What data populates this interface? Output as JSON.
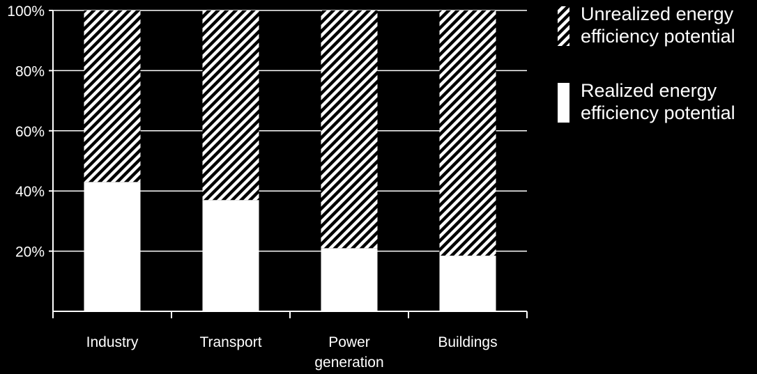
{
  "colors": {
    "background": "#000000",
    "foreground": "#ffffff"
  },
  "chart_data": {
    "type": "bar",
    "stacked": true,
    "percent_stacked": true,
    "categories": [
      "Industry",
      "Transport",
      "Power generation",
      "Buildings"
    ],
    "category_lines": [
      [
        "Industry"
      ],
      [
        "Transport"
      ],
      [
        "Power",
        "generation"
      ],
      [
        "Buildings"
      ]
    ],
    "series": [
      {
        "name": "Realized energy efficiency potential",
        "legend_lines": [
          "Realized energy",
          "efficiency potential"
        ],
        "pattern": "solid",
        "values": [
          43,
          37,
          21,
          18.5
        ]
      },
      {
        "name": "Unrealized energy efficiency potential",
        "legend_lines": [
          "Unrealized energy",
          "efficiency potential"
        ],
        "pattern": "diagonal-hatch",
        "values": [
          57,
          63,
          79,
          81.5
        ]
      }
    ],
    "ylim": [
      0,
      100
    ],
    "yticks": [
      20,
      40,
      60,
      80,
      100
    ],
    "ytick_labels": [
      "20%",
      "40%",
      "60%",
      "80%",
      "100%"
    ],
    "grid": true,
    "legend_position": "right",
    "title": "",
    "xlabel": "",
    "ylabel": ""
  }
}
